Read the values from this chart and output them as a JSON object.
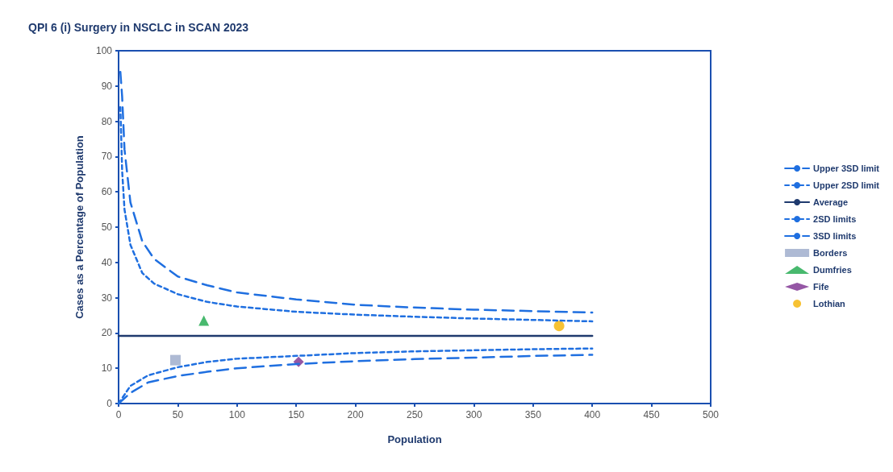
{
  "chart_data": {
    "type": "line",
    "title": "QPI 6 (i) Surgery in NSCLC in SCAN 2023",
    "xlabel": "Population",
    "ylabel": "Cases as a Percentage of Population",
    "xlim": [
      0,
      500
    ],
    "xticks": [
      0,
      50,
      100,
      150,
      200,
      250,
      300,
      350,
      400,
      450,
      500
    ],
    "ylim": [
      0,
      100
    ],
    "yticks": [
      0,
      10,
      20,
      30,
      40,
      50,
      60,
      70,
      80,
      90,
      100
    ],
    "grid": false,
    "legend": "right",
    "series": [
      {
        "name": "Upper 3SD limit",
        "line_style": "dashed",
        "marker": "none",
        "color": "#1f6fe0",
        "x": [
          1.5,
          3,
          5,
          10,
          20,
          30,
          50,
          75,
          100,
          150,
          200,
          250,
          300,
          350,
          400
        ],
        "values": [
          94,
          87,
          72,
          57,
          46,
          41,
          36,
          33.5,
          31.5,
          29.5,
          28,
          27.2,
          26.6,
          26.2,
          25.8
        ]
      },
      {
        "name": "Upper 2SD limit",
        "line_style": "dotted",
        "marker": "none",
        "color": "#1f6fe0",
        "x": [
          1.5,
          3,
          5,
          10,
          20,
          30,
          50,
          75,
          100,
          150,
          200,
          250,
          300,
          350,
          400
        ],
        "values": [
          84,
          66,
          55,
          45,
          37,
          34,
          31,
          28.8,
          27.5,
          26,
          25.2,
          24.6,
          24.1,
          23.7,
          23.3
        ]
      },
      {
        "name": "Average",
        "line_style": "solid",
        "marker": "none",
        "color": "#1f3a6e",
        "x": [
          0,
          400
        ],
        "values": [
          19.2,
          19.2
        ]
      },
      {
        "name": "2SD limits",
        "line_style": "dotted",
        "marker": "none",
        "color": "#1f6fe0",
        "x": [
          0,
          10,
          25,
          50,
          75,
          100,
          150,
          200,
          250,
          300,
          350,
          400
        ],
        "values": [
          0,
          5,
          8,
          10.3,
          11.8,
          12.7,
          13.5,
          14.3,
          14.8,
          15.1,
          15.4,
          15.6
        ]
      },
      {
        "name": "3SD limits",
        "line_style": "dashed",
        "marker": "none",
        "color": "#1f6fe0",
        "x": [
          0,
          10,
          25,
          50,
          75,
          100,
          150,
          200,
          250,
          300,
          350,
          400
        ],
        "values": [
          0,
          3,
          6,
          7.8,
          9,
          10,
          11.2,
          12,
          12.6,
          13,
          13.5,
          13.8
        ]
      },
      {
        "name": "Borders",
        "type": "scatter",
        "marker": "square",
        "color": "#9aa9c9",
        "x": [
          48
        ],
        "values": [
          12.3
        ]
      },
      {
        "name": "Dumfries",
        "type": "scatter",
        "marker": "triangle",
        "color": "#1aa84a",
        "x": [
          72
        ],
        "values": [
          23.5
        ]
      },
      {
        "name": "Fife",
        "type": "scatter",
        "marker": "diamond",
        "color": "#7b2d8e",
        "x": [
          152
        ],
        "values": [
          11.8
        ]
      },
      {
        "name": "Lothian",
        "type": "scatter",
        "marker": "circle",
        "color": "#f5b300",
        "x": [
          372
        ],
        "values": [
          22
        ]
      }
    ]
  }
}
